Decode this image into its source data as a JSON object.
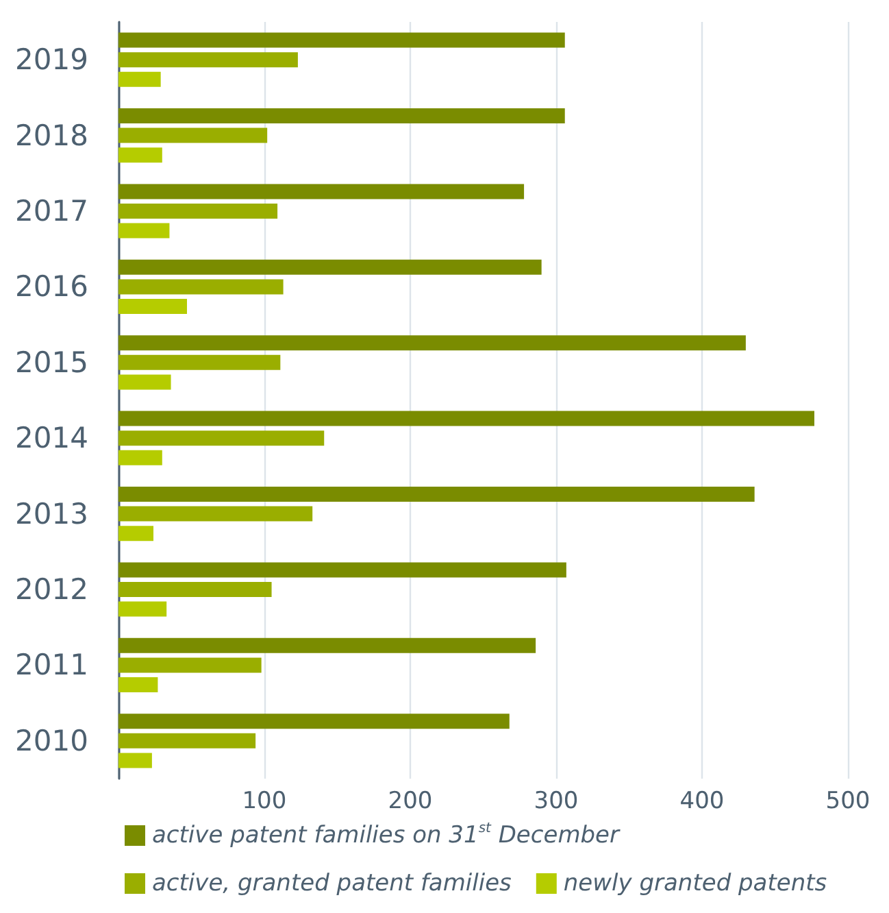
{
  "chart_data": {
    "type": "bar",
    "orientation": "horizontal",
    "categories": [
      "2019",
      "2018",
      "2017",
      "2016",
      "2015",
      "2014",
      "2013",
      "2012",
      "2011",
      "2010"
    ],
    "series": [
      {
        "name": "active patent families on 31$^{st}$ December",
        "color": "#7a8c00",
        "values": [
          306,
          306,
          278,
          290,
          430,
          477,
          436,
          307,
          286,
          268
        ]
      },
      {
        "name": "active, granted patent families",
        "color": "#9aae00",
        "values": [
          123,
          102,
          109,
          113,
          111,
          141,
          133,
          105,
          98,
          94
        ]
      },
      {
        "name": "newly granted patents",
        "color": "#b5cc00",
        "values": [
          29,
          30,
          35,
          47,
          36,
          30,
          24,
          33,
          27,
          23
        ]
      }
    ],
    "xlim": [
      0,
      500
    ],
    "xticks": [
      {
        "value": 0,
        "label": null
      },
      100,
      200,
      300,
      400,
      500
    ],
    "grid": "x",
    "legend": "bottom"
  }
}
